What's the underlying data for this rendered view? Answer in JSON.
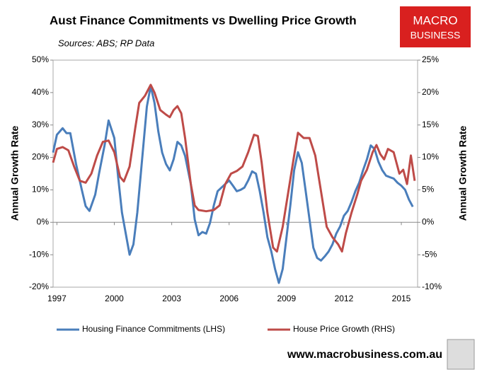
{
  "chart_data": {
    "type": "line",
    "title": "Aust Finance Commitments vs Dwelling Price Growth",
    "subtitle": "Sources: ABS; RP Data",
    "logo": [
      "MACRO",
      "BUSINESS"
    ],
    "footer": "www.macrobusiness.com.au",
    "ylabel": "Annual Growth Rate",
    "y2label": "Annual Growth Rate",
    "xlim": [
      1996.8,
      2015.85
    ],
    "xticks": [
      1997,
      2000,
      2003,
      2006,
      2009,
      2012,
      2015
    ],
    "ylim": [
      -20,
      50
    ],
    "yticks": [
      {
        "value": -20,
        "label": "-20%"
      },
      {
        "value": -10,
        "label": "-10%"
      },
      {
        "value": 0,
        "label": "0%"
      },
      {
        "value": 10,
        "label": "10%"
      },
      {
        "value": 20,
        "label": "20%"
      },
      {
        "value": 30,
        "label": "30%"
      },
      {
        "value": 40,
        "label": "40%"
      },
      {
        "value": 50,
        "label": "50%"
      }
    ],
    "y2lim": [
      -10,
      25
    ],
    "y2ticks": [
      {
        "value": -10,
        "label": "-10%"
      },
      {
        "value": -5,
        "label": "-5%"
      },
      {
        "value": 0,
        "label": "0%"
      },
      {
        "value": 5,
        "label": "5%"
      },
      {
        "value": 10,
        "label": "10%"
      },
      {
        "value": 15,
        "label": "15%"
      },
      {
        "value": 20,
        "label": "20%"
      },
      {
        "value": 25,
        "label": "25%"
      }
    ],
    "series": [
      {
        "name": "Housing Finance Commitments (LHS)",
        "color": "#4a7ebb",
        "axis": "y",
        "x": [
          1996.8,
          1997.0,
          1997.3,
          1997.5,
          1997.7,
          1998.0,
          1998.3,
          1998.5,
          1998.7,
          1999.0,
          1999.2,
          1999.5,
          1999.7,
          2000.0,
          2000.2,
          2000.4,
          2000.6,
          2000.8,
          2001.0,
          2001.2,
          2001.5,
          2001.7,
          2001.9,
          2002.1,
          2002.3,
          2002.5,
          2002.7,
          2002.9,
          2003.1,
          2003.3,
          2003.5,
          2003.7,
          2004.0,
          2004.2,
          2004.4,
          2004.6,
          2004.8,
          2005.0,
          2005.2,
          2005.4,
          2005.6,
          2005.8,
          2006.0,
          2006.2,
          2006.4,
          2006.6,
          2006.8,
          2007.0,
          2007.2,
          2007.4,
          2007.6,
          2007.8,
          2008.0,
          2008.2,
          2008.4,
          2008.6,
          2008.8,
          2009.0,
          2009.2,
          2009.4,
          2009.6,
          2009.8,
          2010.0,
          2010.2,
          2010.4,
          2010.6,
          2010.8,
          2011.0,
          2011.2,
          2011.4,
          2011.6,
          2011.8,
          2012.0,
          2012.2,
          2012.4,
          2012.6,
          2012.8,
          2013.0,
          2013.2,
          2013.4,
          2013.6,
          2013.8,
          2014.0,
          2014.2,
          2014.4,
          2014.6,
          2014.8,
          2015.0,
          2015.2,
          2015.4,
          2015.6
        ],
        "values": [
          21.5,
          27,
          29,
          27.5,
          27.5,
          18,
          10,
          5,
          3.5,
          8.5,
          15,
          24,
          31.4,
          26,
          14,
          3,
          -3.5,
          -10,
          -6.8,
          3,
          22.6,
          35.7,
          42,
          36.8,
          28,
          21.5,
          18,
          16,
          19.4,
          24.8,
          23.7,
          20.5,
          11.8,
          0.9,
          -4,
          -3,
          -3.5,
          -0.2,
          5.2,
          9.6,
          10.7,
          11.8,
          12.9,
          11.3,
          9.6,
          10,
          10.7,
          12.9,
          15.7,
          15,
          9.6,
          3,
          -4.6,
          -8.9,
          -14.4,
          -18.7,
          -14.4,
          -4.6,
          5.2,
          16.1,
          21.6,
          18.3,
          9.6,
          0.9,
          -7.8,
          -11,
          -11.8,
          -10.5,
          -9,
          -6.8,
          -3.5,
          -1.3,
          2,
          3.5,
          6.3,
          9.6,
          12.2,
          16.1,
          19.4,
          23.7,
          22.6,
          18.7,
          16.1,
          14.4,
          13.9,
          13.5,
          12.2,
          11.3,
          10,
          7,
          4.8
        ]
      },
      {
        "name": "House Price Growth (RHS)",
        "color": "#be4b48",
        "axis": "y2",
        "x": [
          1996.8,
          1997.0,
          1997.3,
          1997.6,
          1997.9,
          1998.2,
          1998.5,
          1998.8,
          1999.1,
          1999.4,
          1999.7,
          2000.0,
          2000.3,
          2000.5,
          2000.8,
          2001.1,
          2001.3,
          2001.6,
          2001.9,
          2002.1,
          2002.4,
          2002.7,
          2002.9,
          2003.1,
          2003.3,
          2003.5,
          2003.7,
          2004.0,
          2004.2,
          2004.4,
          2004.8,
          2005.2,
          2005.5,
          2005.8,
          2006.1,
          2006.4,
          2006.7,
          2007.0,
          2007.3,
          2007.5,
          2007.7,
          2008.0,
          2008.3,
          2008.5,
          2008.8,
          2009.1,
          2009.4,
          2009.6,
          2009.9,
          2010.2,
          2010.5,
          2010.8,
          2011.1,
          2011.4,
          2011.7,
          2011.9,
          2012.1,
          2012.4,
          2012.7,
          2012.9,
          2013.2,
          2013.5,
          2013.7,
          2013.9,
          2014.1,
          2014.3,
          2014.6,
          2014.9,
          2015.1,
          2015.3,
          2015.5,
          2015.7
        ],
        "values": [
          9.2,
          11.3,
          11.6,
          11.1,
          8.6,
          6.4,
          6.1,
          7.5,
          10.3,
          12.4,
          12.6,
          10.8,
          7,
          6.3,
          8.6,
          14.6,
          18.4,
          19.5,
          21.2,
          20,
          17.3,
          16.6,
          16.2,
          17.3,
          17.9,
          16.8,
          13,
          5.9,
          2.6,
          1.9,
          1.7,
          1.9,
          2.6,
          5.9,
          7.5,
          7.9,
          8.6,
          10.8,
          13.5,
          13.3,
          9.2,
          1.5,
          -3.9,
          -4.5,
          -0.7,
          4.8,
          10.3,
          13.8,
          13,
          13,
          10.3,
          4.8,
          -0.7,
          -2.3,
          -3.4,
          -4.5,
          -1.7,
          1.5,
          4.3,
          6.4,
          8.1,
          10.8,
          11.9,
          10.5,
          9.7,
          11.3,
          10.8,
          7.5,
          8.1,
          5.9,
          10.3,
          6.4
        ]
      }
    ]
  }
}
